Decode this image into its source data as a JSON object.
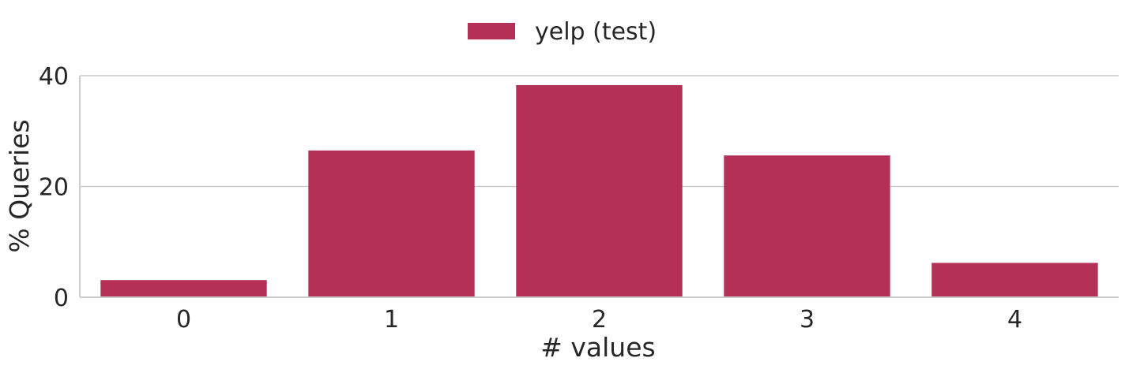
{
  "chart_data": {
    "type": "bar",
    "categories": [
      "0",
      "1",
      "2",
      "3",
      "4"
    ],
    "series": [
      {
        "name": "yelp (test)",
        "values": [
          3.1,
          26.5,
          38.3,
          25.6,
          6.2
        ],
        "color": "#b53057"
      }
    ],
    "xlabel": "# values",
    "ylabel": "% Queries",
    "ylim": [
      0,
      40
    ],
    "yticks": [
      0,
      20,
      40
    ],
    "grid": true,
    "legend_position": "top-center"
  }
}
